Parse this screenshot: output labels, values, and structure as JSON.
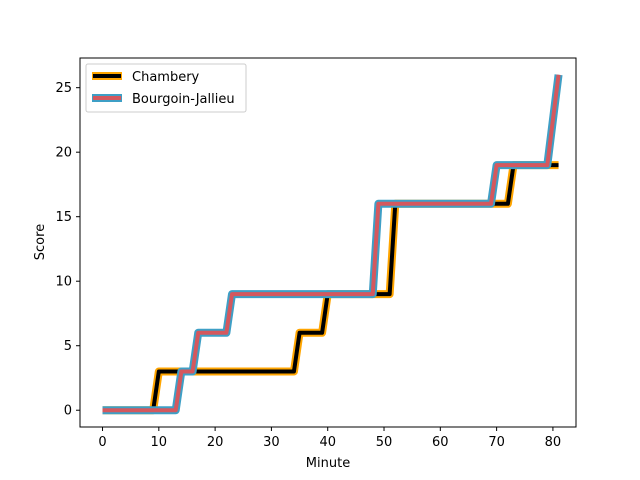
{
  "chart_data": {
    "type": "line",
    "xlabel": "Minute",
    "ylabel": "Score",
    "xlim": [
      -4,
      84.1
    ],
    "ylim": [
      -1.3,
      27.3
    ],
    "xticks": [
      0,
      10,
      20,
      30,
      40,
      50,
      60,
      70,
      80
    ],
    "yticks": [
      0,
      5,
      10,
      15,
      20,
      25
    ],
    "grid": false,
    "legend_position": "top-left",
    "series": [
      {
        "name": "Chambery",
        "line_color": "#000000",
        "outline_color": "#ffa500",
        "points": [
          [
            0,
            0
          ],
          [
            9,
            0
          ],
          [
            10,
            3
          ],
          [
            34,
            3
          ],
          [
            35,
            6
          ],
          [
            39,
            6
          ],
          [
            40,
            9
          ],
          [
            50,
            9
          ],
          [
            51,
            9
          ],
          [
            52,
            16
          ],
          [
            71,
            16
          ],
          [
            72,
            16
          ],
          [
            73,
            19
          ],
          [
            81,
            19
          ]
        ]
      },
      {
        "name": "Bourgoin-Jallieu",
        "line_color": "#d4585e",
        "outline_color": "#3e9fc6",
        "points": [
          [
            0,
            0
          ],
          [
            13,
            0
          ],
          [
            14,
            3
          ],
          [
            16,
            3
          ],
          [
            17,
            6
          ],
          [
            22,
            6
          ],
          [
            23,
            9
          ],
          [
            48,
            9
          ],
          [
            49,
            16
          ],
          [
            69,
            16
          ],
          [
            70,
            19
          ],
          [
            79,
            19
          ],
          [
            81,
            26
          ]
        ]
      }
    ]
  }
}
